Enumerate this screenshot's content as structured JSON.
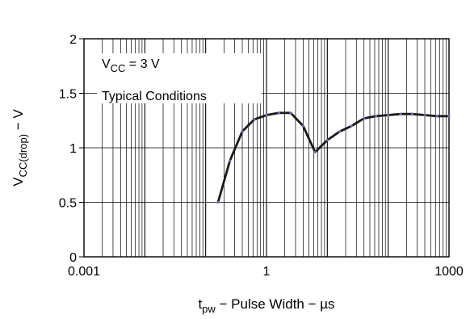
{
  "chart_data": {
    "type": "line",
    "title": "",
    "xlabel": {
      "main": "t",
      "sub": "pw",
      "rest": " − Pulse Width − µs"
    },
    "ylabel": {
      "main": "V",
      "sub": "CC(drop)",
      "rest": " − V"
    },
    "x_scale": "log",
    "xlim": [
      0.001,
      1000
    ],
    "ylim": [
      0,
      2
    ],
    "x_ticks": [
      {
        "value": 0.001,
        "label": "0.001"
      },
      {
        "value": 1,
        "label": "1"
      },
      {
        "value": 1000,
        "label": "1000"
      }
    ],
    "y_ticks": [
      {
        "value": 0,
        "label": "0"
      },
      {
        "value": 0.5,
        "label": "0.5"
      },
      {
        "value": 1,
        "label": "1"
      },
      {
        "value": 1.5,
        "label": "1.5"
      },
      {
        "value": 2,
        "label": "2"
      }
    ],
    "grid": true,
    "annotations": [
      {
        "main": "V",
        "sub": "CC",
        "rest": " = 3 V"
      },
      {
        "text": "Typical Conditions"
      }
    ],
    "series": [
      {
        "color": "#1a1a1a",
        "marker_color": "#6b6bb0",
        "x": [
          0.16,
          0.25,
          0.4,
          0.63,
          1.0,
          1.6,
          2.5,
          4.0,
          6.3,
          10,
          16,
          25,
          40,
          63,
          100,
          160,
          250,
          400,
          630,
          1000
        ],
        "y": [
          0.5,
          0.88,
          1.15,
          1.26,
          1.3,
          1.32,
          1.32,
          1.2,
          0.96,
          1.07,
          1.15,
          1.2,
          1.27,
          1.29,
          1.3,
          1.31,
          1.31,
          1.3,
          1.29,
          1.29
        ]
      }
    ]
  }
}
